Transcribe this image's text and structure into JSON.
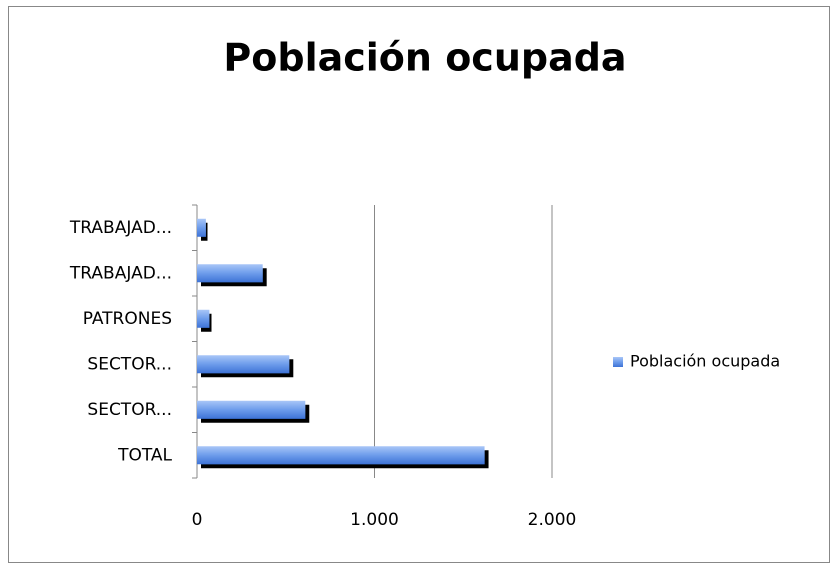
{
  "chart_data": {
    "type": "bar",
    "orientation": "horizontal",
    "title": "Población ocupada",
    "categories": [
      "TOTAL",
      "SECTOR...",
      "SECTOR...",
      "PATRONES",
      "TRABAJAD...",
      "TRABAJAD..."
    ],
    "series": [
      {
        "name": "Población ocupada",
        "color": "#5b8fe6",
        "values": [
          1620,
          610,
          520,
          70,
          370,
          50
        ]
      }
    ],
    "xlim": [
      0,
      2000
    ],
    "xticks": [
      0,
      {
        "value": 1000,
        "label": "1.000"
      },
      {
        "value": 2000,
        "label": "2.000"
      }
    ],
    "grid": true,
    "legend": "right"
  }
}
